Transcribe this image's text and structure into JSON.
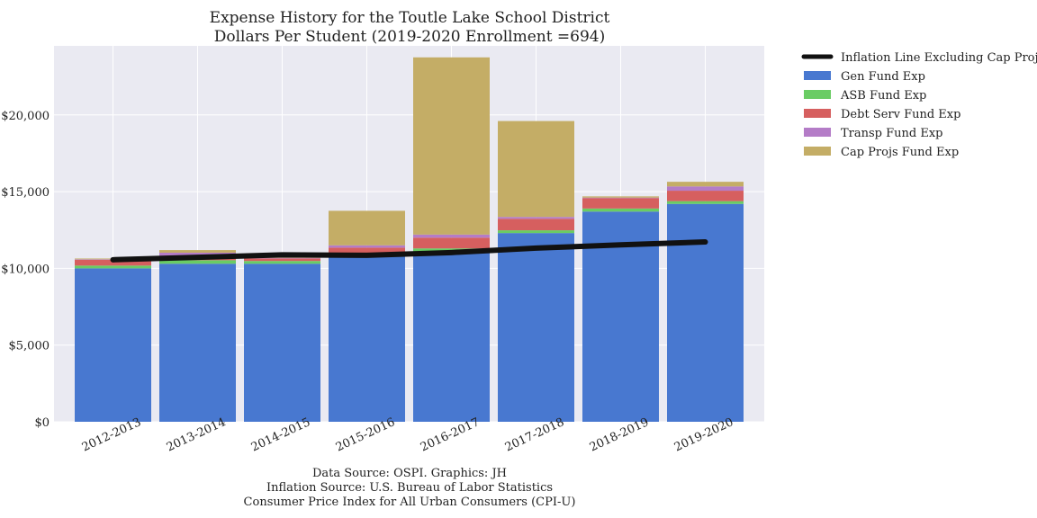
{
  "chart_data": {
    "type": "bar",
    "stacked": true,
    "title": "Expense History for the Toutle Lake School District",
    "subtitle": "Dollars Per Student (2019-2020 Enrollment =694)",
    "xlabel": "",
    "ylabel": "",
    "ylim": [
      0,
      24500
    ],
    "yticks": [
      0,
      5000,
      10000,
      15000,
      20000
    ],
    "ytick_labels": [
      "$0",
      "$5,000",
      "$10,000",
      "$15,000",
      "$20,000"
    ],
    "grid": true,
    "legend_position": "outside-top-right",
    "categories": [
      "2012-2013",
      "2013-2014",
      "2014-2015",
      "2015-2016",
      "2016-2017",
      "2017-2018",
      "2018-2019",
      "2019-2020"
    ],
    "series": [
      {
        "name": "Gen Fund Exp",
        "color": "#4878d0",
        "values": [
          10000,
          10300,
          10300,
          10800,
          11100,
          12300,
          13700,
          14200
        ]
      },
      {
        "name": "ASB Fund Exp",
        "color": "#6acc64",
        "values": [
          180,
          230,
          180,
          170,
          200,
          180,
          200,
          180
        ]
      },
      {
        "name": "Debt Serv Fund Exp",
        "color": "#d65f5f",
        "values": [
          380,
          190,
          170,
          380,
          700,
          750,
          680,
          680
        ]
      },
      {
        "name": "Transp Fund Exp",
        "color": "#b47cc7",
        "values": [
          30,
          300,
          30,
          150,
          200,
          120,
          30,
          280
        ]
      },
      {
        "name": "Cap Projs Fund Exp",
        "color": "#c4ad66",
        "values": [
          50,
          170,
          30,
          2250,
          11550,
          6250,
          80,
          300
        ]
      }
    ],
    "line": {
      "name": "Inflation Line Excluding Cap Projs",
      "color": "#111111",
      "values": [
        10560,
        10720,
        10880,
        10850,
        11030,
        11320,
        11530,
        11720
      ]
    },
    "footer": [
      "Data Source: OSPI. Graphics: JH",
      "Inflation Source: U.S. Bureau of Labor Statistics",
      "Consumer Price Index for All Urban Consumers (CPI-U)"
    ]
  }
}
